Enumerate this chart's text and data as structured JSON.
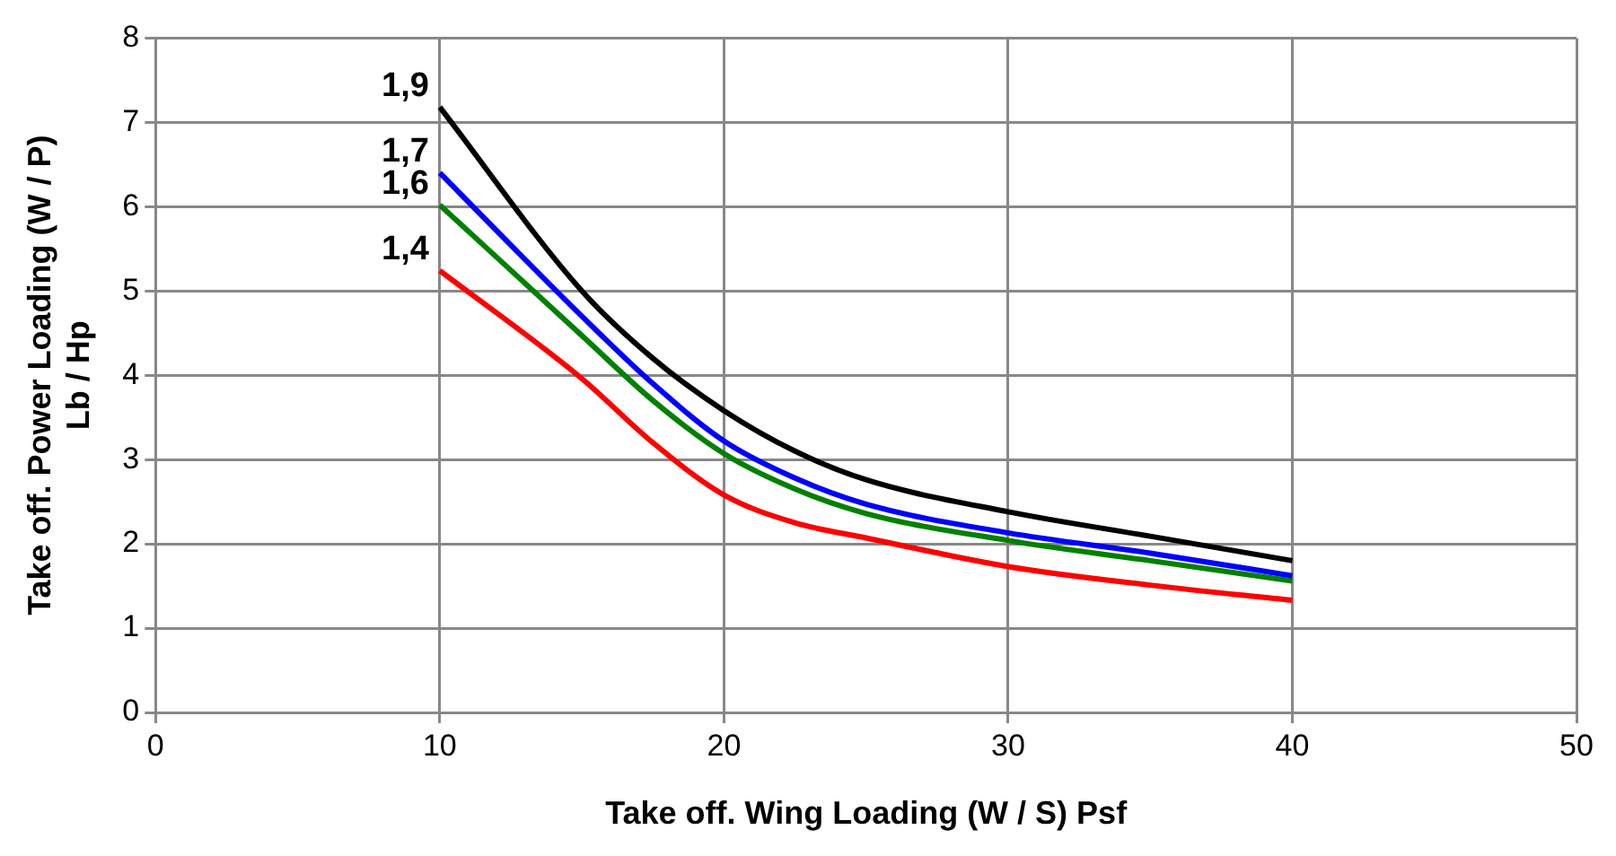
{
  "chart_data": {
    "type": "line",
    "xlabel": "Take off. Wing Loading (W / S) Psf",
    "ylabel": "Take off. Power Loading (W / P)\nLb / Hp",
    "xlim": [
      0,
      50
    ],
    "xticks": [
      0,
      10,
      20,
      30,
      40,
      50
    ],
    "ylim": [
      0,
      8
    ],
    "yticks": [
      0,
      1,
      2,
      3,
      4,
      5,
      6,
      7,
      8
    ],
    "grid": true,
    "legend": false,
    "marker": "none",
    "line_style": "solid",
    "x": [
      10,
      15,
      17.5,
      20,
      22.5,
      25,
      30,
      35,
      40
    ],
    "series": [
      {
        "name": "1,9",
        "color": "#000000",
        "values": [
          7.18,
          5.0,
          4.2,
          3.58,
          3.1,
          2.76,
          2.38,
          2.09,
          1.8
        ]
      },
      {
        "name": "1,7",
        "color": "#0000ff",
        "values": [
          6.4,
          4.7,
          3.9,
          3.22,
          2.78,
          2.47,
          2.13,
          1.89,
          1.62
        ]
      },
      {
        "name": "1,6",
        "color": "#008000",
        "values": [
          6.02,
          4.47,
          3.7,
          3.07,
          2.65,
          2.36,
          2.04,
          1.8,
          1.56
        ]
      },
      {
        "name": "1,4",
        "color": "#ff0000",
        "values": [
          5.24,
          3.96,
          3.2,
          2.58,
          2.25,
          2.07,
          1.73,
          1.51,
          1.33
        ]
      }
    ]
  }
}
